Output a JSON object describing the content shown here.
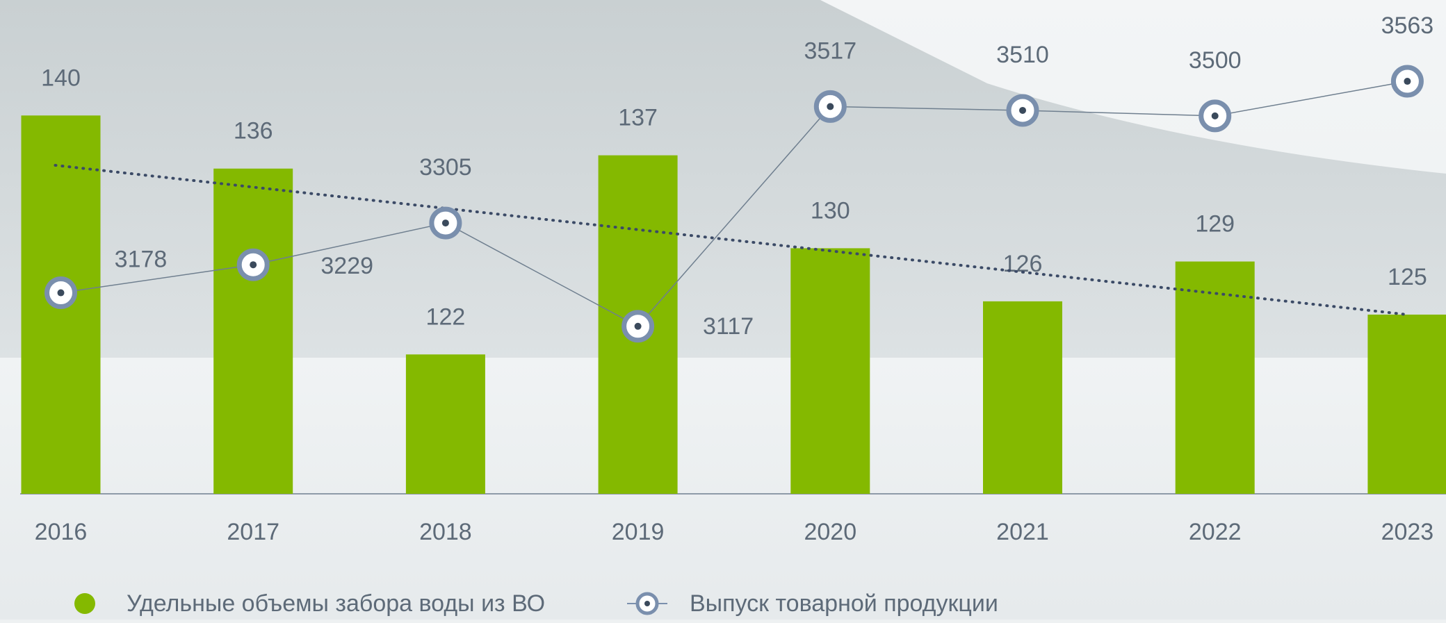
{
  "chart_data": {
    "type": "bar-line",
    "categories": [
      "2016",
      "2017",
      "2018",
      "2019",
      "2020",
      "2021",
      "2022",
      "2023"
    ],
    "series": [
      {
        "name": "Удельные объемы забора воды из ВО",
        "type": "bar",
        "color": "#84b900",
        "values": [
          140,
          136,
          122,
          137,
          130,
          126,
          129,
          125
        ]
      },
      {
        "name": "Выпуск товарной продукции",
        "type": "line",
        "axis": "y2",
        "color": "#7a8fad",
        "values": [
          3178,
          3229,
          3305,
          3117,
          3517,
          3510,
          3500,
          3563
        ]
      }
    ],
    "ylim": [
      111.5,
      148.7
    ],
    "y2lim": [
      2812,
      3711
    ],
    "trendline": true,
    "grid": false
  }
}
